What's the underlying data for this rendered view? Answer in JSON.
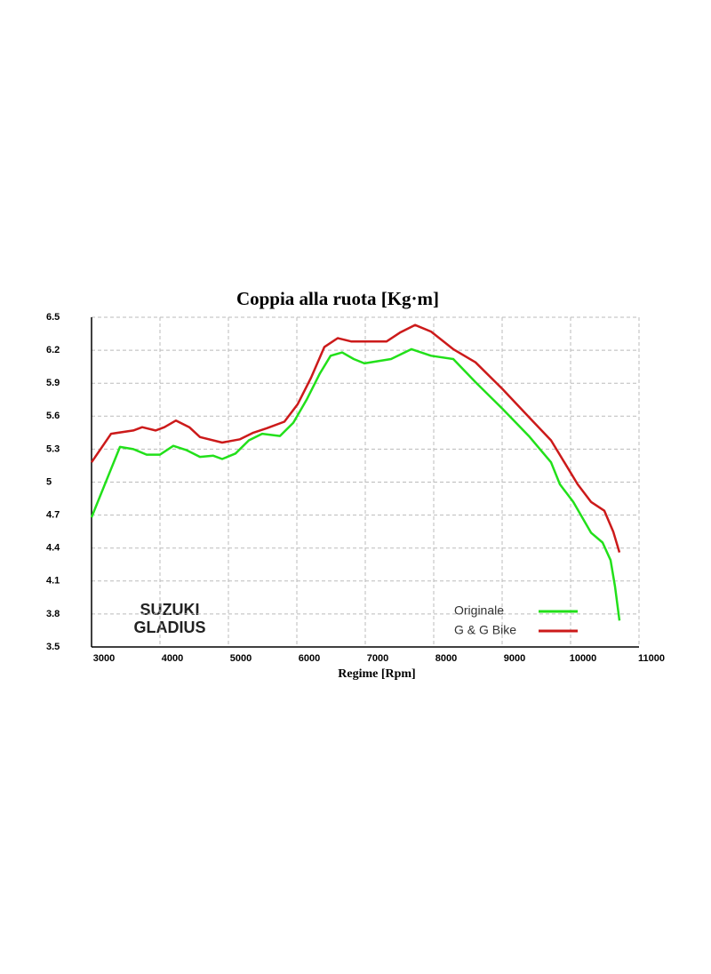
{
  "chart_data": {
    "type": "line",
    "title": "Coppia alla ruota  [Kg·m]",
    "x_label": "Regime [Rpm]",
    "annotations": [
      "SUZUKI",
      "GLADIUS"
    ],
    "xlim": [
      3000,
      11000
    ],
    "xticks": [
      3000,
      4000,
      5000,
      6000,
      7000,
      8000,
      9000,
      10000,
      11000
    ],
    "ylim": [
      3.5,
      6.5
    ],
    "yticks": [
      3.5,
      3.8,
      4.1,
      4.4,
      4.7,
      5,
      5.3,
      5.6,
      5.9,
      6.2,
      6.5
    ],
    "grid": true,
    "legend": "lower right",
    "series": [
      {
        "name": "Originale",
        "color": "#22e01a",
        "x": [
          3000,
          3416,
          3610,
          3805,
          4000,
          4195,
          4390,
          4584,
          4779,
          4909,
          5104,
          5299,
          5494,
          5753,
          5948,
          6143,
          6338,
          6494,
          6662,
          6831,
          6987,
          7377,
          7675,
          7961,
          8286,
          8610,
          9000,
          9390,
          9714,
          9844,
          10039,
          10299,
          10468,
          10584,
          10649,
          10714
        ],
        "values": [
          4.68,
          5.32,
          5.3,
          5.25,
          5.25,
          5.33,
          5.29,
          5.23,
          5.24,
          5.21,
          5.26,
          5.38,
          5.44,
          5.42,
          5.54,
          5.75,
          5.99,
          6.15,
          6.18,
          6.12,
          6.08,
          6.12,
          6.21,
          6.15,
          6.12,
          5.91,
          5.67,
          5.42,
          5.18,
          4.98,
          4.82,
          4.54,
          4.45,
          4.29,
          4.05,
          3.74
        ]
      },
      {
        "name": "G & G Bike",
        "color": "#cc1a1a",
        "x": [
          3000,
          3286,
          3610,
          3740,
          3935,
          4065,
          4234,
          4429,
          4584,
          4909,
          5169,
          5364,
          5558,
          5818,
          6013,
          6208,
          6403,
          6597,
          6792,
          7117,
          7312,
          7506,
          7727,
          7961,
          8286,
          8610,
          9000,
          9455,
          9714,
          9909,
          10104,
          10299,
          10494,
          10623,
          10714
        ],
        "values": [
          5.18,
          5.44,
          5.47,
          5.5,
          5.47,
          5.5,
          5.56,
          5.5,
          5.41,
          5.36,
          5.39,
          5.45,
          5.49,
          5.55,
          5.71,
          5.95,
          6.23,
          6.31,
          6.28,
          6.28,
          6.28,
          6.36,
          6.43,
          6.37,
          6.21,
          6.09,
          5.85,
          5.55,
          5.38,
          5.18,
          4.98,
          4.82,
          4.74,
          4.55,
          4.36
        ]
      }
    ]
  }
}
